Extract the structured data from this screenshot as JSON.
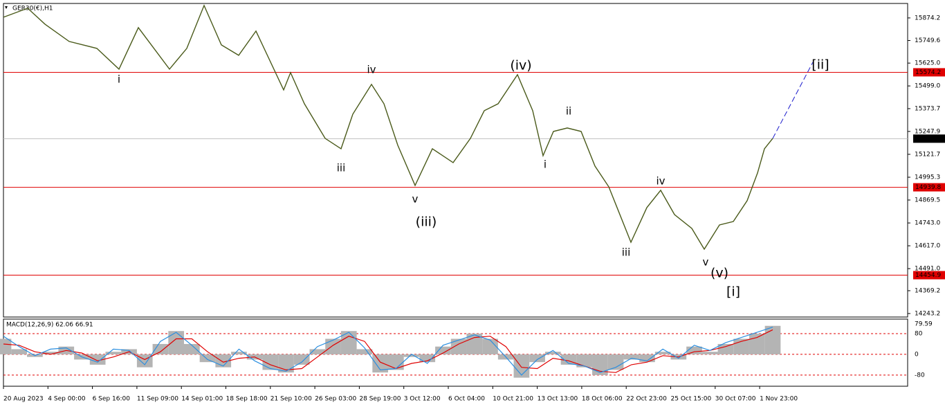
{
  "chart_data": [
    {
      "type": "line",
      "title": "GER30(€),H1",
      "color": "#4a5a1a",
      "xlim": [
        0,
        1307
      ],
      "ylim": [
        14224,
        15954
      ],
      "x": [
        0,
        35,
        60,
        95,
        135,
        167,
        195,
        240,
        265,
        290,
        315,
        340,
        365,
        405,
        415,
        435,
        465,
        488,
        505,
        532,
        550,
        570,
        595,
        620,
        650,
        675,
        695,
        715,
        743,
        765,
        780,
        795,
        815,
        835,
        855,
        875,
        907,
        930,
        950,
        970,
        995,
        1013,
        1035,
        1055,
        1075,
        1090,
        1100,
        1112
      ],
      "values": [
        15878.0,
        15927.7,
        15839.8,
        15744.3,
        15706.1,
        15591.5,
        15820.7,
        15591.5,
        15706.1,
        15943.0,
        15725.2,
        15667.9,
        15801.6,
        15477.0,
        15572.4,
        15400.6,
        15209.6,
        15152.3,
        15343.3,
        15507.5,
        15400.6,
        15171.4,
        14949.8,
        15152.3,
        15075.9,
        15209.6,
        15362.4,
        15400.6,
        15561.0,
        15362.4,
        15114.1,
        15247.8,
        15266.9,
        15247.8,
        15056.8,
        14942.2,
        14636.6,
        14827.6,
        14923.1,
        14789.4,
        14712.9,
        14598.4,
        14732.0,
        14751.2,
        14865.8,
        15018.6,
        15152.3,
        15209.6
      ],
      "yticks": [
        15874.2,
        15749.6,
        {
          "value": 15625.0,
          "label": "15625.0"
        },
        {
          "value": 15499.0,
          "label": "15499.0"
        },
        15373.7,
        15247.9,
        15121.7,
        14995.3,
        14869.5,
        {
          "value": 14743.0,
          "label": "14743.0"
        },
        {
          "value": 14617.0,
          "label": "14617.0"
        },
        {
          "value": 14491.0,
          "label": "14491.0"
        },
        14369.2,
        14243.2
      ],
      "levels": [
        {
          "value": 15574.2,
          "color": "#e00000"
        },
        {
          "value": 14939.8,
          "color": "#e00000"
        },
        {
          "value": 14454.9,
          "color": "#e00000"
        }
      ],
      "last_price": 15208.1,
      "projection": {
        "x": 1170,
        "value": 15629.7,
        "color": "#1a1acc"
      },
      "annotations": [
        {
          "text": "i",
          "x": 167,
          "y": 15534.3,
          "color": "#e020e0",
          "size": "small"
        },
        {
          "text": "iii",
          "x": 488,
          "y": 15045.3,
          "color": "#e020e0",
          "size": "small"
        },
        {
          "text": "iv",
          "x": 532,
          "y": 15587.7,
          "color": "#e020e0",
          "size": "small"
        },
        {
          "text": "v",
          "x": 595,
          "y": 14873.4,
          "color": "#e020e0",
          "size": "small"
        },
        {
          "text": "(iii)",
          "x": 611,
          "y": 14747.4,
          "color": "#1a1acc",
          "size": "large"
        },
        {
          "text": "(iv)",
          "x": 748,
          "y": 15610.6,
          "color": "#1a1acc",
          "size": "large"
        },
        {
          "text": "ii",
          "x": 817,
          "y": 15358.5,
          "color": "#e020e0",
          "size": "small"
        },
        {
          "text": "i",
          "x": 783,
          "y": 15064.4,
          "color": "#e020e0",
          "size": "small"
        },
        {
          "text": "iii",
          "x": 900,
          "y": 14579.3,
          "color": "#e020e0",
          "size": "small"
        },
        {
          "text": "iv",
          "x": 950,
          "y": 14972.8,
          "color": "#e020e0",
          "size": "small"
        },
        {
          "text": "v",
          "x": 1015,
          "y": 14525.8,
          "color": "#e020e0",
          "size": "small"
        },
        {
          "text": "(v)",
          "x": 1035,
          "y": 14464.7,
          "color": "#1a1acc",
          "size": "large"
        },
        {
          "text": "[i]",
          "x": 1055,
          "y": 14361.6,
          "color": "#2a8a2a",
          "size": "large"
        },
        {
          "text": "[ii]",
          "x": 1181,
          "y": 15614.5,
          "color": "#2a8a2a",
          "size": "large"
        }
      ],
      "categories": [
        "20 Aug 2023",
        "4 Sep 00:00",
        "6 Sep 16:00",
        "11 Sep 09:00",
        "14 Sep 01:00",
        "18 Sep 18:00",
        "21 Sep 10:00",
        "26 Sep 03:00",
        "28 Sep 19:00",
        "3 Oct 12:00",
        "6 Oct 04:00",
        "10 Oct 21:00",
        "13 Oct 13:00",
        "18 Oct 06:00",
        "22 Oct 23:00",
        "25 Oct 15:00",
        "30 Oct 07:00",
        "1 Nov 23:00"
      ]
    },
    {
      "type": "macd",
      "title": "MACD(12,26,9) 62.06 66.91",
      "ylim": [
        -123,
        136
      ],
      "yticks": [
        80,
        0,
        -80
      ],
      "current": 79.59,
      "series": [
        {
          "name": "histogram",
          "color": "#b4b4b4",
          "values": [
            60,
            20,
            -10,
            10,
            30,
            -20,
            -40,
            10,
            20,
            -50,
            40,
            90,
            40,
            -30,
            -50,
            10,
            -20,
            -60,
            -70,
            -40,
            20,
            60,
            90,
            20,
            -70,
            -60,
            -10,
            -30,
            30,
            60,
            80,
            60,
            -20,
            -90,
            -30,
            10,
            -40,
            -50,
            -80,
            -60,
            -20,
            -30,
            10,
            -20,
            30,
            10,
            40,
            60,
            80,
            110
          ]
        },
        {
          "name": "signal",
          "color": "#e00000",
          "values": [
            40,
            35,
            10,
            0,
            15,
            5,
            -25,
            -10,
            10,
            -20,
            10,
            60,
            60,
            10,
            -30,
            -15,
            -10,
            -40,
            -60,
            -55,
            -10,
            35,
            70,
            50,
            -30,
            -55,
            -35,
            -25,
            5,
            40,
            65,
            70,
            30,
            -50,
            -55,
            -15,
            -25,
            -45,
            -65,
            -70,
            -40,
            -30,
            -5,
            -10,
            10,
            15,
            30,
            50,
            65,
            95
          ]
        },
        {
          "name": "macd",
          "color": "#2b8fe0",
          "values": [
            70,
            30,
            -5,
            20,
            25,
            -10,
            -30,
            20,
            15,
            -40,
            50,
            85,
            35,
            -20,
            -45,
            20,
            -25,
            -55,
            -65,
            -30,
            30,
            55,
            85,
            25,
            -60,
            -55,
            0,
            -35,
            35,
            55,
            75,
            55,
            -10,
            -80,
            -20,
            15,
            -35,
            -45,
            -70,
            -50,
            -15,
            -25,
            20,
            -15,
            35,
            15,
            45,
            65,
            85,
            105
          ]
        }
      ]
    }
  ]
}
